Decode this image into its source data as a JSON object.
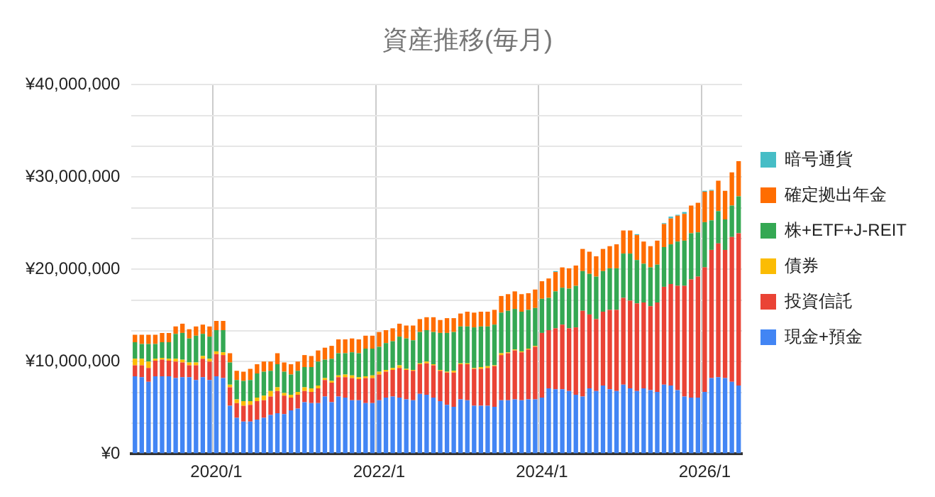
{
  "chart_data": {
    "type": "bar",
    "title": "資産推移(毎月)",
    "stacked": true,
    "grid": true,
    "legend": "right",
    "categories": [
      null,
      null,
      null,
      null,
      null,
      null,
      null,
      null,
      null,
      null,
      null,
      null,
      "2020/1",
      null,
      null,
      null,
      null,
      null,
      null,
      null,
      null,
      null,
      null,
      null,
      null,
      null,
      null,
      null,
      null,
      null,
      null,
      null,
      null,
      null,
      null,
      null,
      "2022/1",
      null,
      null,
      null,
      null,
      null,
      null,
      null,
      null,
      null,
      null,
      null,
      null,
      null,
      null,
      null,
      null,
      null,
      null,
      null,
      null,
      null,
      null,
      null,
      "2024/1",
      null,
      null,
      null,
      null,
      null,
      null,
      null,
      null,
      null,
      null,
      null,
      null,
      null,
      null,
      null,
      null,
      null,
      null,
      null,
      null,
      null,
      null,
      null,
      "2026/1",
      null,
      null,
      null,
      null,
      null
    ],
    "ylim": [
      0,
      40000000
    ],
    "yticks": [
      {
        "value": 0,
        "label": "¥0"
      },
      {
        "value": 3333333,
        "label": null
      },
      {
        "value": 6666667,
        "label": null
      },
      {
        "value": 10000000,
        "label": "¥10,000,000"
      },
      {
        "value": 13333333,
        "label": null
      },
      {
        "value": 16666667,
        "label": null
      },
      {
        "value": 20000000,
        "label": "¥20,000,000"
      },
      {
        "value": 23333333,
        "label": null
      },
      {
        "value": 26666667,
        "label": null
      },
      {
        "value": 30000000,
        "label": "¥30,000,000"
      },
      {
        "value": 33333333,
        "label": null
      },
      {
        "value": 36666667,
        "label": null
      },
      {
        "value": 40000000,
        "label": "¥40,000,000"
      }
    ],
    "series": [
      {
        "name": "現金+預金",
        "color": "#4285f4",
        "values": [
          8400000.0,
          8300000.0,
          7800000.0,
          8400000.0,
          8400000.0,
          8400000.0,
          8200000.0,
          8300000.0,
          8300000.0,
          8000000.0,
          8300000.0,
          8000000.0,
          8400000.0,
          8200000.0,
          5200000.0,
          3900000.0,
          3500000.0,
          3500000.0,
          3700000.0,
          3900000.0,
          4200000.0,
          4400000.0,
          4300000.0,
          4700000.0,
          4900000.0,
          5600000.0,
          5500000.0,
          5500000.0,
          6200000.0,
          5600000.0,
          6200000.0,
          6100000.0,
          5800000.0,
          5800000.0,
          5500000.0,
          5500000.0,
          5800000.0,
          6100000.0,
          6200000.0,
          6100000.0,
          5900000.0,
          5800000.0,
          6500000.0,
          6400000.0,
          6100000.0,
          5700000.0,
          5300000.0,
          5100000.0,
          5900000.0,
          5800000.0,
          5200000.0,
          5200000.0,
          5200000.0,
          5100000.0,
          5800000.0,
          5800000.0,
          5900000.0,
          5800000.0,
          5900000.0,
          5900000.0,
          6100000.0,
          7100000.0,
          7000000.0,
          7000000.0,
          6800000.0,
          6400000.0,
          6200000.0,
          7100000.0,
          6800000.0,
          7400000.0,
          7000000.0,
          6800000.0,
          7500000.0,
          7100000.0,
          6800000.0,
          7100000.0,
          6900000.0,
          6700000.0,
          7500000.0,
          7400000.0,
          6900000.0,
          6200000.0,
          6100000.0,
          6100000.0,
          6700000.0,
          8200000.0,
          8300000.0,
          8200000.0,
          7800000.0,
          7400000.0
        ]
      },
      {
        "name": "投資信託",
        "color": "#ea4335",
        "values": [
          1200000.0,
          1300000.0,
          1500000.0,
          1700000.0,
          1800000.0,
          1700000.0,
          1800000.0,
          1600000.0,
          1300000.0,
          1600000.0,
          2000000.0,
          2000000.0,
          2400000.0,
          2500000.0,
          2000000.0,
          1600000.0,
          1700000.0,
          1800000.0,
          2000000.0,
          1900000.0,
          2000000.0,
          2400000.0,
          2000000.0,
          1400000.0,
          1500000.0,
          1200000.0,
          1200000.0,
          1600000.0,
          1800000.0,
          2100000.0,
          2100000.0,
          2200000.0,
          2400000.0,
          2300000.0,
          2700000.0,
          2700000.0,
          2800000.0,
          2800000.0,
          2900000.0,
          3200000.0,
          3200000.0,
          3200000.0,
          3200000.0,
          3400000.0,
          3500000.0,
          3300000.0,
          3500000.0,
          3700000.0,
          3800000.0,
          3900000.0,
          4000000.0,
          4000000.0,
          4100000.0,
          4400000.0,
          4900000.0,
          5100000.0,
          5300000.0,
          5200000.0,
          5400000.0,
          5700000.0,
          7000000.0,
          6300000.0,
          6600000.0,
          7000000.0,
          6800000.0,
          7300000.0,
          9300000.0,
          8000000.0,
          7800000.0,
          8000000.0,
          8600000.0,
          8800000.0,
          9400000.0,
          9500000.0,
          9500000.0,
          9300000.0,
          9100000.0,
          9700000.0,
          10600000.0,
          11000000.0,
          11300000.0,
          12000000.0,
          12800000.0,
          13100000.0,
          13500000.0,
          13900000.0,
          14500000.0,
          13900000.0,
          15700000.0,
          16500000.0
        ]
      },
      {
        "name": "債券",
        "color": "#fbbc04",
        "values": [
          700000.0,
          700000.0,
          700000.0,
          200000.0,
          200000.0,
          200000.0,
          300000.0,
          300000.0,
          300000.0,
          300000.0,
          300000.0,
          300000.0,
          300000.0,
          300000.0,
          300000.0,
          400000.0,
          500000.0,
          400000.0,
          400000.0,
          500000.0,
          600000.0,
          400000.0,
          300000.0,
          300000.0,
          300000.0,
          400000.0,
          400000.0,
          300000.0,
          200000.0,
          200000.0,
          200000.0,
          300000.0,
          300000.0,
          200000.0,
          200000.0,
          300000.0,
          300000.0,
          200000.0,
          200000.0,
          300000.0,
          100000.0,
          100000.0,
          100000.0,
          200000.0,
          100000.0,
          100000.0,
          100000.0,
          200000.0,
          100000.0,
          100000.0,
          100000.0,
          200000.0,
          200000.0,
          100000.0,
          200000.0,
          100000.0,
          100000.0,
          100000.0,
          100000.0,
          100000.0,
          null,
          null,
          null,
          null,
          null,
          null,
          null,
          null,
          null,
          null,
          null,
          null,
          null,
          null,
          null,
          null,
          null,
          null,
          null,
          null,
          null,
          null,
          null,
          null,
          null,
          null,
          null,
          null,
          null,
          null
        ]
      },
      {
        "name": "株+ETF+J-REIT",
        "color": "#34a853",
        "values": [
          1800000.0,
          1600000.0,
          1900000.0,
          1600000.0,
          1700000.0,
          1800000.0,
          2700000.0,
          2900000.0,
          2600000.0,
          2900000.0,
          2400000.0,
          2400000.0,
          2300000.0,
          2400000.0,
          2400000.0,
          2100000.0,
          2200000.0,
          2300000.0,
          2600000.0,
          2600000.0,
          2200000.0,
          2500000.0,
          2300000.0,
          2200000.0,
          2300000.0,
          2200000.0,
          2300000.0,
          2600000.0,
          2000000.0,
          2400000.0,
          2400000.0,
          2300000.0,
          2500000.0,
          2600000.0,
          3000000.0,
          2900000.0,
          2700000.0,
          2900000.0,
          2900000.0,
          3100000.0,
          3300000.0,
          3200000.0,
          3400000.0,
          3400000.0,
          3500000.0,
          4000000.0,
          4200000.0,
          4200000.0,
          4000000.0,
          4000000.0,
          4400000.0,
          4400000.0,
          4300000.0,
          4400000.0,
          4400000.0,
          4500000.0,
          4400000.0,
          4300000.0,
          4200000.0,
          4100000.0,
          3700000.0,
          3500000.0,
          4000000.0,
          4000000.0,
          4300000.0,
          4500000.0,
          4300000.0,
          4400000.0,
          4600000.0,
          4400000.0,
          4500000.0,
          4500000.0,
          4800000.0,
          5100000.0,
          4700000.0,
          4200000.0,
          4200000.0,
          4100000.0,
          4300000.0,
          4300000.0,
          4800000.0,
          4900000.0,
          5000000.0,
          4800000.0,
          4900000.0,
          3200000.0,
          3500000.0,
          3300000.0,
          3400000.0,
          4000000.0
        ]
      },
      {
        "name": "確定拠出年金",
        "color": "#ff6d01",
        "values": [
          800000.0,
          1000000.0,
          1000000.0,
          1000000.0,
          1000000.0,
          1000000.0,
          800000.0,
          1000000.0,
          1000000.0,
          1000000.0,
          1000000.0,
          1100000.0,
          1000000.0,
          1000000.0,
          1000000.0,
          1000000.0,
          1000000.0,
          1200000.0,
          1000000.0,
          1100000.0,
          1000000.0,
          1200000.0,
          1000000.0,
          1100000.0,
          1000000.0,
          1300000.0,
          1200000.0,
          1200000.0,
          1300000.0,
          1400000.0,
          1500000.0,
          1500000.0,
          1500000.0,
          1500000.0,
          1400000.0,
          1400000.0,
          1600000.0,
          1400000.0,
          1400000.0,
          1400000.0,
          1400000.0,
          1600000.0,
          1400000.0,
          1400000.0,
          1600000.0,
          1400000.0,
          1600000.0,
          1500000.0,
          1400000.0,
          1600000.0,
          1600000.0,
          1600000.0,
          1600000.0,
          1600000.0,
          1800000.0,
          1800000.0,
          1900000.0,
          1900000.0,
          1800000.0,
          2000000.0,
          1900000.0,
          2100000.0,
          2100000.0,
          2200000.0,
          2200000.0,
          2200000.0,
          2400000.0,
          2400000.0,
          2200000.0,
          2400000.0,
          2400000.0,
          2600000.0,
          2500000.0,
          2500000.0,
          2700000.0,
          2400000.0,
          2300000.0,
          2600000.0,
          2500000.0,
          2800000.0,
          2800000.0,
          2900000.0,
          3000000.0,
          3200000.0,
          3300000.0,
          3200000.0,
          3300000.0,
          3100000.0,
          3600000.0,
          3800000.0
        ]
      },
      {
        "name": "暗号通貨",
        "color": "#46bdc6",
        "values": [
          null,
          null,
          null,
          null,
          null,
          null,
          null,
          null,
          null,
          null,
          null,
          null,
          null,
          null,
          null,
          null,
          null,
          null,
          null,
          null,
          null,
          null,
          null,
          null,
          null,
          null,
          null,
          null,
          null,
          null,
          null,
          null,
          null,
          null,
          null,
          null,
          null,
          null,
          null,
          null,
          null,
          null,
          null,
          null,
          null,
          null,
          null,
          null,
          null,
          null,
          null,
          null,
          null,
          null,
          null,
          null,
          null,
          null,
          null,
          null,
          null,
          null,
          100000.0,
          null,
          null,
          null,
          null,
          null,
          null,
          null,
          null,
          null,
          null,
          null,
          100000.0,
          null,
          null,
          null,
          100000.0,
          200000.0,
          100000.0,
          200000.0,
          null,
          null,
          100000.0,
          100000.0,
          null,
          null,
          null,
          null
        ]
      }
    ]
  }
}
